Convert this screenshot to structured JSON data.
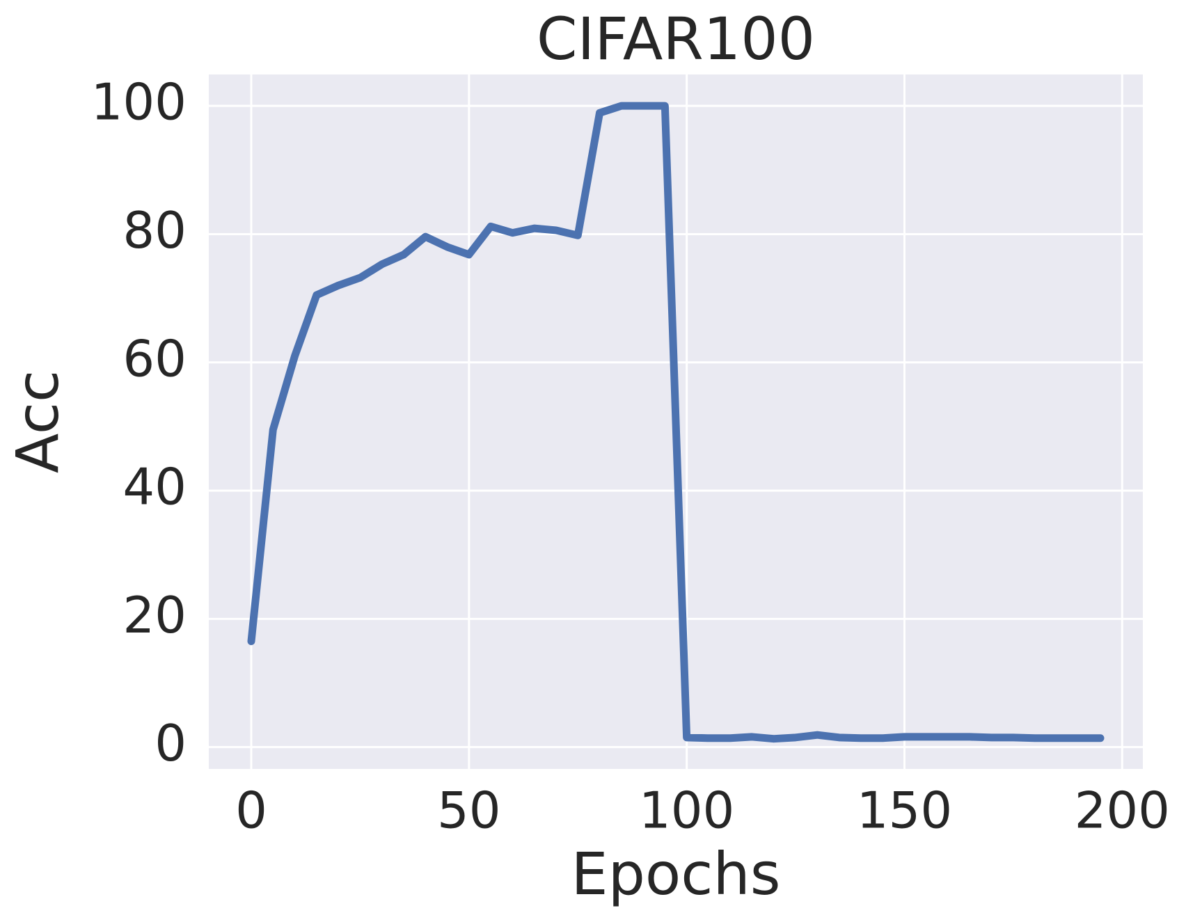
{
  "chart_data": {
    "type": "line",
    "title": "CIFAR100",
    "xlabel": "Epochs",
    "ylabel": "Acc",
    "x": [
      0,
      5,
      10,
      15,
      20,
      25,
      30,
      35,
      40,
      45,
      50,
      55,
      60,
      65,
      70,
      75,
      80,
      85,
      90,
      95,
      100,
      105,
      110,
      115,
      120,
      125,
      130,
      135,
      140,
      145,
      150,
      155,
      160,
      165,
      170,
      175,
      180,
      185,
      190,
      195
    ],
    "series": [
      {
        "color": "#4c72b0",
        "values": [
          16.5,
          49.5,
          61,
          70.5,
          72,
          73.2,
          75.3,
          76.8,
          79.6,
          78,
          76.8,
          81.2,
          80.2,
          80.9,
          80.6,
          79.8,
          98.9,
          100,
          100,
          100,
          1.5,
          1.4,
          1.4,
          1.6,
          1.3,
          1.5,
          1.9,
          1.5,
          1.4,
          1.4,
          1.6,
          1.6,
          1.6,
          1.6,
          1.5,
          1.5,
          1.4,
          1.4,
          1.4,
          1.4
        ]
      }
    ],
    "xlim": [
      -9.75,
      204.75
    ],
    "ylim": [
      -3.4,
      104.9
    ],
    "xticks": [
      0,
      50,
      100,
      150,
      200
    ],
    "yticks": [
      0,
      20,
      40,
      60,
      80,
      100
    ],
    "grid": true
  }
}
